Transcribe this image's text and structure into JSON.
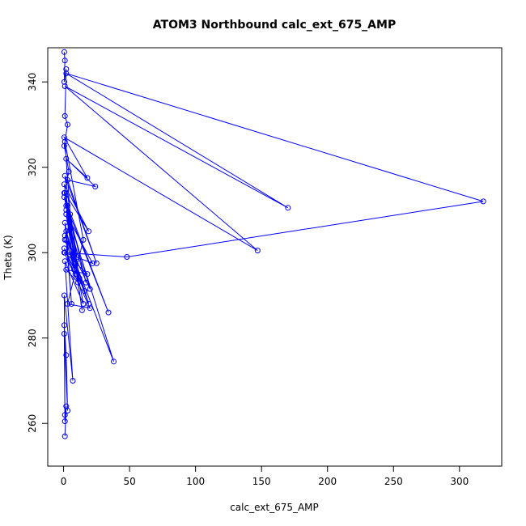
{
  "chart_data": {
    "type": "line",
    "title": "ATOM3 Northbound calc_ext_675_AMP",
    "xlabel": "calc_ext_675_AMP",
    "ylabel": "Theta (K)",
    "xlim": [
      -12,
      332
    ],
    "ylim": [
      250,
      348
    ],
    "xticks": [
      0,
      50,
      100,
      150,
      200,
      250,
      300
    ],
    "yticks": [
      260,
      280,
      300,
      320,
      340
    ],
    "grid": false,
    "legend": "none",
    "line_color": "#0000ff",
    "markers": "open circles",
    "series": [
      {
        "x": [
          0.5,
          1,
          0.5,
          2,
          1,
          3,
          0.5,
          4,
          0.5,
          5,
          2,
          8,
          1,
          15,
          3,
          20,
          0.5,
          48,
          318,
          2,
          170,
          1,
          147,
          0.5,
          18,
          2,
          24,
          3,
          25,
          1,
          10,
          0.5,
          34,
          2,
          20,
          1,
          38,
          2,
          12,
          0.5,
          19,
          1,
          14,
          3,
          17,
          2,
          9,
          1,
          6,
          2,
          19,
          1,
          16,
          0.5,
          11,
          2,
          18,
          1,
          22,
          2,
          15,
          1,
          7,
          0.5,
          1,
          0.5,
          3,
          2,
          0.5,
          1,
          2,
          1
        ],
        "y": [
          347,
          345,
          340,
          343,
          332,
          330,
          325,
          319,
          314,
          309,
          303,
          296,
          326,
          303,
          288,
          287,
          300,
          299,
          312,
          342,
          310.5,
          339,
          300.5,
          327,
          317.5,
          322,
          315.5,
          317,
          297.5,
          318,
          299,
          313,
          286,
          311,
          291.5,
          304,
          274.5,
          310,
          294,
          316,
          305,
          314,
          286.5,
          311,
          293,
          309,
          295,
          307,
          288,
          305,
          288,
          303,
          291,
          301,
          293,
          296,
          295,
          300,
          297.5,
          309,
          288,
          298,
          270,
          290,
          262,
          281,
          263,
          276,
          283,
          260.5,
          264,
          257
        ]
      }
    ]
  }
}
